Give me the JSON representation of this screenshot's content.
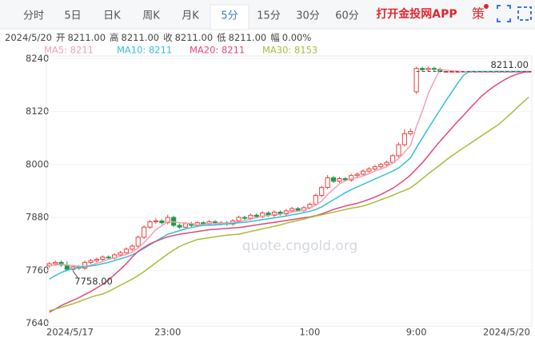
{
  "tabs": [
    "分时",
    "5日",
    "日K",
    "周K",
    "月K",
    "5分",
    "15分",
    "30分",
    "60分"
  ],
  "selected_tab": 5,
  "app_link": "打开金投网APP",
  "strategy": "策",
  "chart_data": {
    "type": "candlestick",
    "info": {
      "date": "2024/5/20",
      "fields": [
        {
          "label": "开",
          "value": "8211.00"
        },
        {
          "label": "高",
          "value": "8211.00"
        },
        {
          "label": "收",
          "value": "8211.00"
        },
        {
          "label": "低",
          "value": "8211.00"
        },
        {
          "label": "幅",
          "value": "0.00%"
        }
      ]
    },
    "categories": [
      null,
      null,
      null,
      "2024/5/17",
      null,
      null,
      null,
      null,
      null,
      null,
      null,
      null,
      null,
      null,
      null,
      null,
      null,
      null,
      null,
      null,
      "23:00",
      null,
      null,
      null,
      null,
      null,
      null,
      null,
      null,
      null,
      null,
      null,
      null,
      null,
      null,
      null,
      null,
      null,
      null,
      null,
      null,
      null,
      null,
      null,
      "1:00",
      null,
      null,
      null,
      null,
      null,
      null,
      null,
      null,
      null,
      null,
      null,
      null,
      null,
      null,
      null,
      null,
      null,
      "9:00",
      null,
      null,
      null,
      null,
      null,
      null,
      null,
      null,
      null,
      null,
      null,
      null,
      null,
      null,
      null,
      null,
      "2024/5/20",
      null,
      null
    ],
    "open": [
      7770,
      7775,
      7778,
      7772,
      7762,
      7768,
      7765,
      7778,
      7782,
      7785,
      7790,
      7788,
      7795,
      7800,
      7808,
      7815,
      7835,
      7858,
      7870,
      7872,
      7868,
      7880,
      7862,
      7858,
      7866,
      7862,
      7868,
      7865,
      7870,
      7866,
      7868,
      7865,
      7872,
      7880,
      7878,
      7885,
      7882,
      7890,
      7885,
      7892,
      7888,
      7895,
      7900,
      7896,
      7902,
      7910,
      7930,
      7948,
      7970,
      7962,
      7968,
      7965,
      7975,
      7978,
      7985,
      7990,
      7995,
      8000,
      8005,
      8020,
      8045,
      8070,
      8165,
      8218,
      8215,
      8218,
      8216,
      8211,
      8211,
      8211,
      8211,
      8211,
      8211,
      8211,
      8211,
      8211,
      8211,
      8211,
      8211,
      8211,
      8211,
      8211
    ],
    "high": [
      7779,
      7782,
      7782,
      7780,
      7772,
      7772,
      7782,
      7786,
      7789,
      7794,
      7794,
      7799,
      7804,
      7812,
      7819,
      7839,
      7862,
      7874,
      7878,
      7876,
      7886,
      7884,
      7866,
      7870,
      7870,
      7872,
      7872,
      7874,
      7874,
      7872,
      7872,
      7876,
      7884,
      7884,
      7889,
      7889,
      7894,
      7894,
      7896,
      7896,
      7899,
      7904,
      7904,
      7906,
      7914,
      7934,
      7952,
      7976,
      7974,
      7972,
      7972,
      7979,
      7982,
      7989,
      7994,
      7999,
      8004,
      8009,
      8024,
      8050,
      8080,
      8082,
      8222,
      8222,
      8222,
      8222,
      8220,
      8211,
      8211,
      8211,
      8211,
      8211,
      8211,
      8211,
      8211,
      8211,
      8211,
      8211,
      8211,
      8211,
      8211,
      8211
    ],
    "low": [
      7766,
      7771,
      7768,
      7760,
      7758,
      7761,
      7761,
      7774,
      7778,
      7781,
      7784,
      7784,
      7791,
      7796,
      7804,
      7811,
      7831,
      7854,
      7866,
      7864,
      7864,
      7858,
      7854,
      7854,
      7858,
      7858,
      7861,
      7861,
      7862,
      7862,
      7861,
      7861,
      7868,
      7874,
      7874,
      7878,
      7878,
      7881,
      7881,
      7884,
      7884,
      7891,
      7892,
      7892,
      7898,
      7906,
      7926,
      7944,
      7958,
      7958,
      7961,
      7961,
      7971,
      7974,
      7981,
      7986,
      7991,
      7996,
      8001,
      8016,
      8041,
      8066,
      8160,
      8211,
      8211,
      8211,
      8209,
      8211,
      8211,
      8211,
      8211,
      8211,
      8211,
      8211,
      8211,
      8211,
      8211,
      8211,
      8211,
      8211,
      8211,
      8211
    ],
    "close": [
      7775,
      7778,
      7772,
      7762,
      7768,
      7765,
      7778,
      7782,
      7785,
      7790,
      7788,
      7795,
      7800,
      7808,
      7815,
      7835,
      7858,
      7870,
      7872,
      7868,
      7880,
      7862,
      7858,
      7866,
      7862,
      7868,
      7865,
      7870,
      7866,
      7868,
      7865,
      7872,
      7880,
      7878,
      7885,
      7882,
      7890,
      7885,
      7892,
      7888,
      7895,
      7900,
      7896,
      7902,
      7910,
      7930,
      7948,
      7970,
      7962,
      7968,
      7965,
      7975,
      7978,
      7985,
      7990,
      7995,
      8000,
      8005,
      8020,
      8045,
      8070,
      8075,
      8218,
      8215,
      8218,
      8216,
      8211,
      8211,
      8211,
      8211,
      8211,
      8211,
      8211,
      8211,
      8211,
      8211,
      8211,
      8211,
      8211,
      8211,
      8211,
      8211
    ],
    "up_color": "#e8423f",
    "down_color": "#1a9e4b",
    "series": [
      {
        "name": "MA5: 8211",
        "color": "#f4a0b5",
        "values": [
          7770,
          7772,
          7774,
          7772,
          7771,
          7769,
          7769,
          7771,
          7776,
          7780,
          7785,
          7788,
          7792,
          7796,
          7801,
          7811,
          7823,
          7837,
          7852,
          7861,
          7870,
          7870,
          7868,
          7867,
          7866,
          7863,
          7864,
          7866,
          7866,
          7867,
          7867,
          7868,
          7870,
          7873,
          7876,
          7879,
          7883,
          7884,
          7887,
          7887,
          7890,
          7892,
          7894,
          7896,
          7901,
          7908,
          7917,
          7932,
          7944,
          7956,
          7963,
          7968,
          7970,
          7974,
          7979,
          7985,
          7990,
          7995,
          8004,
          8013,
          8028,
          8043,
          8086,
          8121,
          8161,
          8189,
          8216,
          8214,
          8213,
          8212,
          8211,
          8211,
          8211,
          8211,
          8211,
          8211,
          8211,
          8211,
          8211,
          8211,
          8211,
          8211
        ]
      },
      {
        "name": "MA10: 8211",
        "color": "#35c0d8",
        "values": [
          7740,
          7748,
          7755,
          7760,
          7764,
          7766,
          7768,
          7770,
          7772,
          7775,
          7778,
          7782,
          7786,
          7790,
          7795,
          7802,
          7810,
          7818,
          7826,
          7834,
          7842,
          7846,
          7850,
          7854,
          7857,
          7860,
          7862,
          7862,
          7863,
          7864,
          7865,
          7866,
          7868,
          7869,
          7871,
          7873,
          7875,
          7877,
          7879,
          7881,
          7883,
          7886,
          7888,
          7891,
          7894,
          7898,
          7904,
          7912,
          7920,
          7928,
          7936,
          7943,
          7949,
          7955,
          7961,
          7967,
          7973,
          7979,
          7985,
          7992,
          8003,
          8015,
          8038,
          8060,
          8082,
          8103,
          8124,
          8145,
          8165,
          8185,
          8203,
          8211,
          8211,
          8211,
          8211,
          8211,
          8211,
          8211,
          8211,
          8211,
          8211,
          8211
        ]
      },
      {
        "name": "MA20: 8211",
        "color": "#e4477a",
        "values": [
          7665,
          7672,
          7680,
          7686,
          7692,
          7698,
          7705,
          7712,
          7720,
          7728,
          7738,
          7750,
          7762,
          7775,
          7790,
          7803,
          7812,
          7820,
          7826,
          7831,
          7836,
          7839,
          7842,
          7844,
          7846,
          7848,
          7850,
          7852,
          7853,
          7854,
          7855,
          7856,
          7857,
          7859,
          7861,
          7863,
          7865,
          7867,
          7869,
          7871,
          7873,
          7875,
          7877,
          7879,
          7881,
          7884,
          7888,
          7893,
          7898,
          7902,
          7906,
          7909,
          7912,
          7916,
          7921,
          7926,
          7932,
          7939,
          7946,
          7955,
          7965,
          7976,
          7990,
          8004,
          8020,
          8037,
          8053,
          8068,
          8083,
          8098,
          8112,
          8127,
          8141,
          8155,
          8166,
          8176,
          8185,
          8193,
          8200,
          8205,
          8209,
          8211
        ]
      },
      {
        "name": "MA30: 8153",
        "color": "#a5be3a",
        "values": [
          7668,
          7672,
          7676,
          7680,
          7684,
          7689,
          7694,
          7699,
          7703,
          7706,
          7712,
          7719,
          7726,
          7733,
          7740,
          7748,
          7757,
          7767,
          7777,
          7787,
          7797,
          7806,
          7814,
          7820,
          7825,
          7830,
          7832,
          7834,
          7836,
          7838,
          7840,
          7841,
          7842,
          7845,
          7848,
          7851,
          7854,
          7857,
          7860,
          7863,
          7867,
          7870,
          7873,
          7876,
          7880,
          7883,
          7886,
          7889,
          7892,
          7895,
          7898,
          7901,
          7903,
          7906,
          7910,
          7915,
          7920,
          7925,
          7930,
          7936,
          7941,
          7947,
          7957,
          7968,
          7979,
          7989,
          7999,
          8010,
          8020,
          8029,
          8038,
          8047,
          8056,
          8065,
          8074,
          8083,
          8092,
          8104,
          8116,
          8129,
          8141,
          8153
        ]
      }
    ],
    "ylim": [
      7630,
      8250
    ],
    "yticks": [
      7640,
      7760,
      7880,
      8000,
      8120,
      8240
    ],
    "grid": true,
    "last_price": {
      "value": 8211,
      "label": "8211.00"
    },
    "low_marker": {
      "value": 7758,
      "label": "7758.00"
    },
    "watermark": "quote.cngold.org"
  }
}
